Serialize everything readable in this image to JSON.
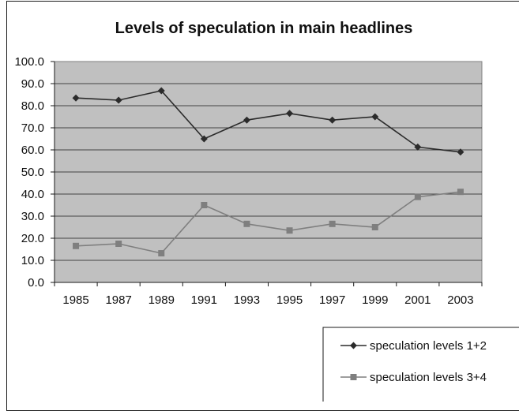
{
  "chart_data": {
    "type": "line",
    "title": "Levels of speculation in main headlines",
    "xlabel": "",
    "ylabel": "",
    "categories": [
      "1985",
      "1987",
      "1989",
      "1991",
      "1993",
      "1995",
      "1997",
      "1999",
      "2001",
      "2003"
    ],
    "ylim": [
      0,
      100
    ],
    "yticks": [
      "0.0",
      "10.0",
      "20.0",
      "30.0",
      "40.0",
      "50.0",
      "60.0",
      "70.0",
      "80.0",
      "90.0",
      "100.0"
    ],
    "grid": true,
    "legend_position": "bottom-right",
    "plot_background": "#c0c0c0",
    "series": [
      {
        "name": "speculation levels 1+2",
        "marker": "diamond",
        "color": "#2b2b2b",
        "values": [
          83.5,
          82.5,
          86.8,
          65.0,
          73.5,
          76.5,
          73.5,
          75.0,
          61.3,
          59.0
        ]
      },
      {
        "name": "speculation levels 3+4",
        "marker": "square",
        "color": "#7f7f7f",
        "values": [
          16.5,
          17.5,
          13.2,
          35.0,
          26.5,
          23.5,
          26.5,
          25.0,
          38.7,
          41.0
        ]
      }
    ]
  }
}
